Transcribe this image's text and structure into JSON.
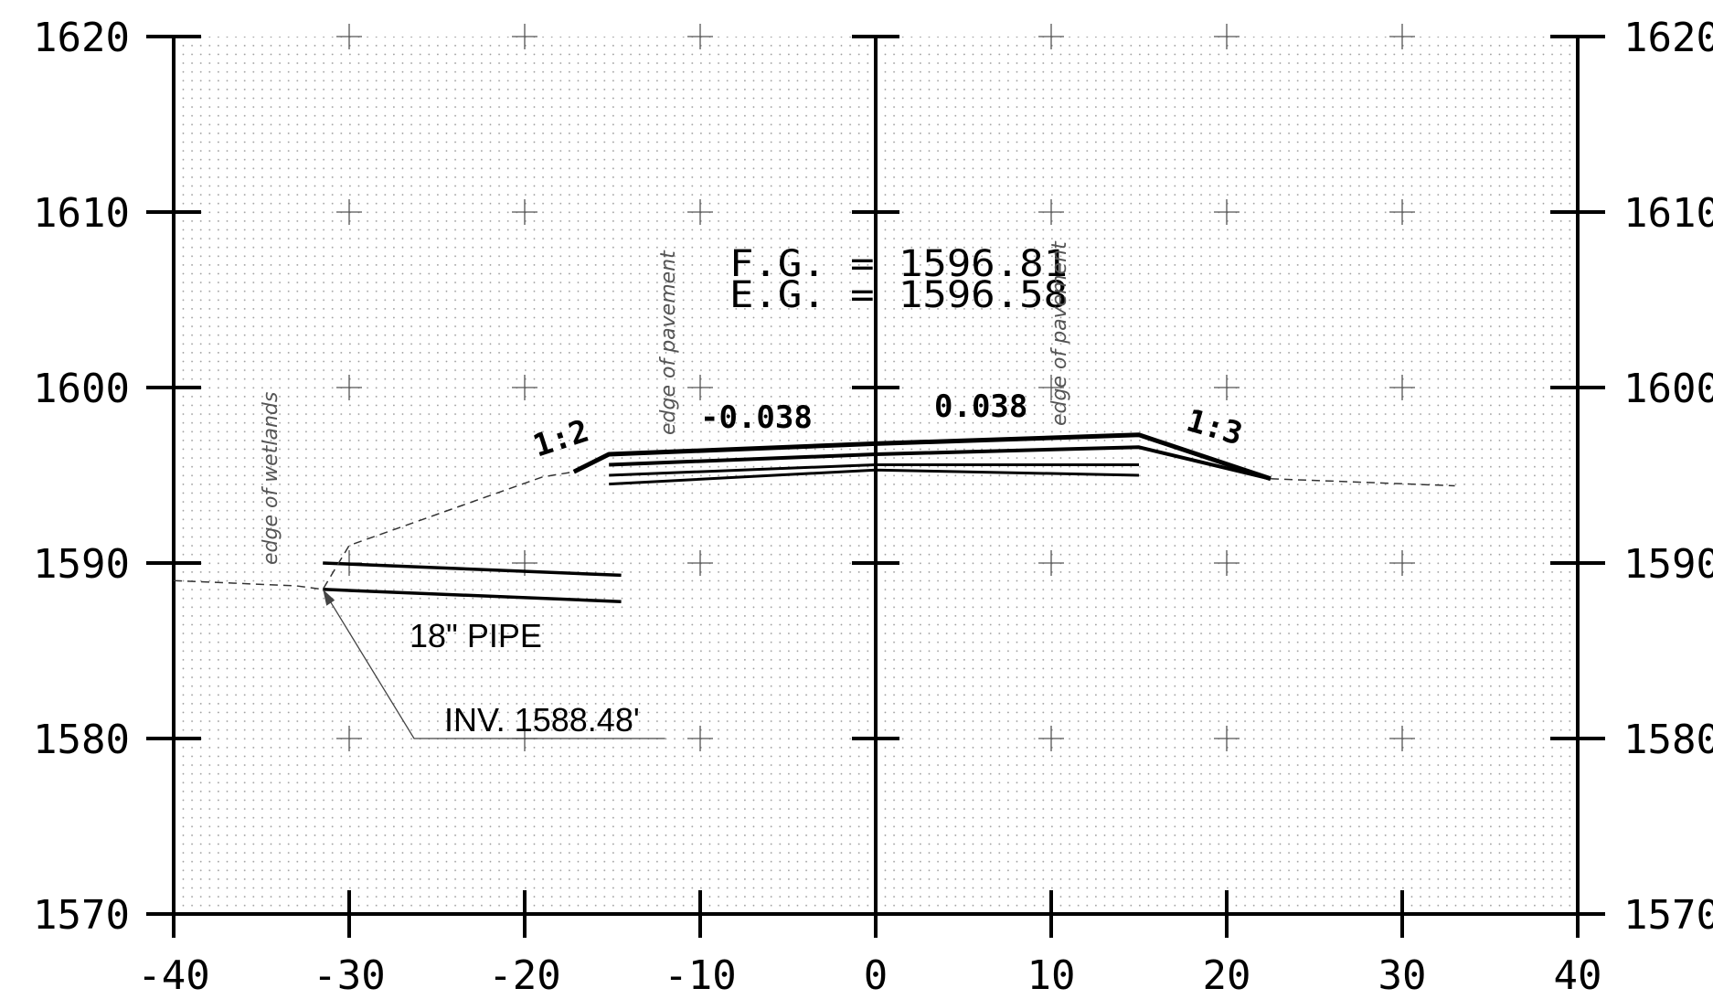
{
  "x_axis": {
    "min": -40,
    "max": 40,
    "step": 10,
    "tick_labels": [
      "-40",
      "-30",
      "-20",
      "-10",
      "0",
      "10",
      "20",
      "30",
      "40"
    ]
  },
  "y_axis": {
    "min": 1570,
    "max": 1620,
    "step": 10,
    "tick_labels": [
      "1570",
      "1580",
      "1590",
      "1600",
      "1610",
      "1620"
    ]
  },
  "labels": {
    "fg": "F.G.  =  1596.81",
    "eg": "E.G.  =  1596.58",
    "slope_left": "-0.038",
    "slope_right": "0.038",
    "side_slope_left": "1:2",
    "side_slope_right": "1:3",
    "pipe": "18\" PIPE",
    "invert": "INV. 1588.48'",
    "edge_wetlands": "edge of wetlands",
    "edge_pavement_left": "edge of pavement",
    "edge_pavement_right": "edge of pavement"
  },
  "grid": true,
  "chart_data": {
    "type": "line",
    "xlim": [
      -40,
      40
    ],
    "ylim": [
      1570,
      1620
    ],
    "grid": true,
    "series": [
      {
        "x": [
          -17.2,
          -15.2,
          0,
          15,
          22.5
        ],
        "y": [
          1595.2,
          1596.2,
          1596.8,
          1597.3,
          1594.8
        ]
      },
      {
        "x": [
          -15.2,
          0,
          15,
          22.5
        ],
        "y": [
          1595.6,
          1596.2,
          1596.6,
          1594.8
        ]
      },
      {
        "x": [
          -15.2,
          0,
          15
        ],
        "y": [
          1595.0,
          1595.6,
          1595.6
        ]
      },
      {
        "x": [
          -15.2,
          0,
          15
        ],
        "y": [
          1594.5,
          1595.3,
          1595.0
        ]
      },
      {
        "x": [
          -31.5,
          -14.5
        ],
        "y": [
          1590.0,
          1589.3
        ]
      },
      {
        "x": [
          -31.5,
          -14.5
        ],
        "y": [
          1588.5,
          1587.8
        ]
      },
      {
        "x": [
          -40,
          -33,
          -31.5,
          -30,
          -19,
          -17.2
        ],
        "y": [
          1589.0,
          1588.7,
          1588.5,
          1591.0,
          1594.9,
          1595.2
        ]
      },
      {
        "x": [
          22.5,
          33
        ],
        "y": [
          1594.8,
          1594.4
        ]
      }
    ]
  }
}
